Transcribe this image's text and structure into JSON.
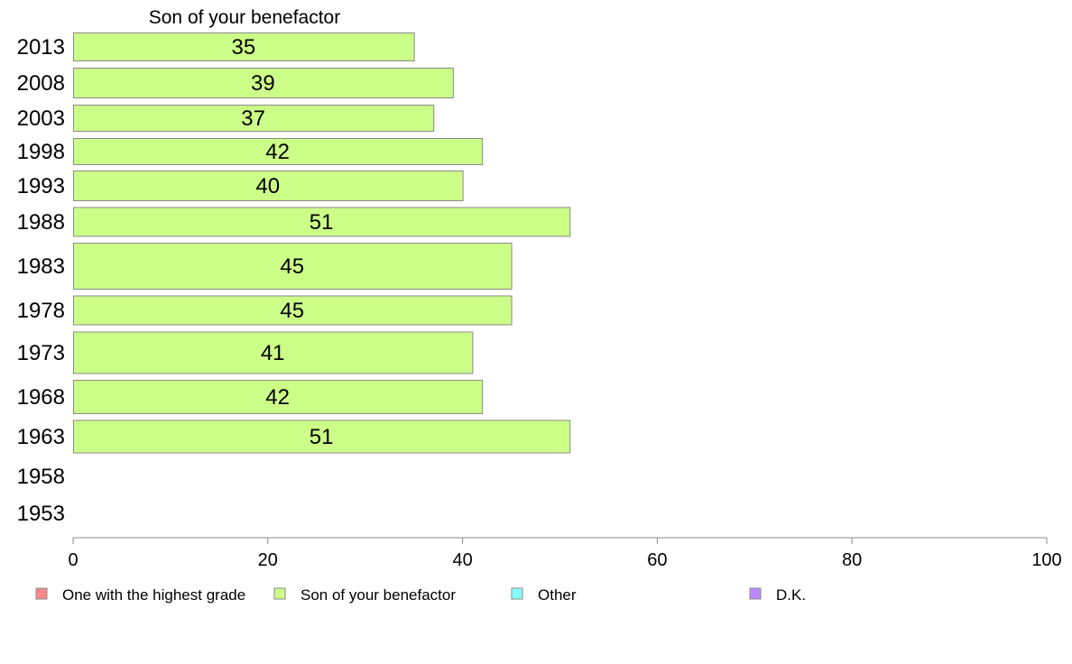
{
  "chart_data": {
    "type": "bar",
    "orientation": "horizontal",
    "title": "Son of your benefactor",
    "categories": [
      "2013",
      "2008",
      "2003",
      "1998",
      "1993",
      "1988",
      "1983",
      "1978",
      "1973",
      "1968",
      "1963",
      "1958",
      "1953"
    ],
    "series": [
      {
        "name": "Son of your benefactor",
        "color": "#ccff88",
        "values": [
          35,
          39,
          37,
          42,
          40,
          51,
          45,
          45,
          41,
          42,
          51,
          null,
          null
        ]
      }
    ],
    "xlim": [
      0,
      100
    ],
    "xticks": [
      "0",
      "20",
      "40",
      "60",
      "80",
      "100"
    ],
    "grid": false,
    "legend_position": "bottom",
    "legend": [
      {
        "label": "One with the highest grade",
        "color": "#ff8888"
      },
      {
        "label": "Son of your benefactor",
        "color": "#ccff88"
      },
      {
        "label": "Other",
        "color": "#88ffff"
      },
      {
        "label": "D.K.",
        "color": "#bb88ff"
      }
    ]
  }
}
